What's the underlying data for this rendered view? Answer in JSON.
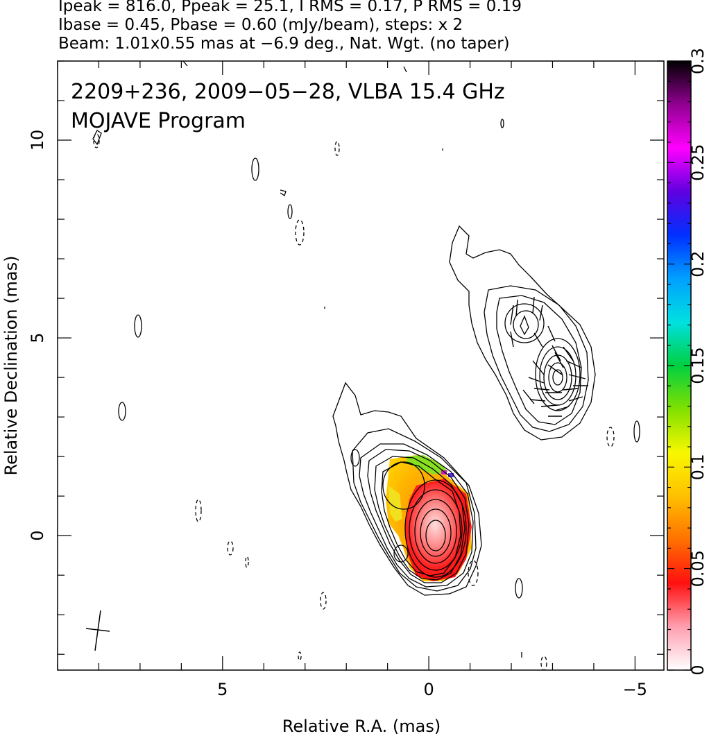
{
  "header": {
    "line1": "Ipeak = 816.0, Ppeak = 25.1, I RMS = 0.17, P RMS = 0.19",
    "line2": "Ibase = 0.45, Pbase = 0.60 (mJy/beam), steps: x 2",
    "line3": "Beam: 1.01x0.55 mas at −6.9 deg., Nat. Wgt. (no taper)"
  },
  "chart_data": {
    "type": "contour",
    "title": "2209+236, 2009−05−28, VLBA 15.4 GHz",
    "subtitle": "MOJAVE Program",
    "xlabel": "Relative R.A. (mas)",
    "ylabel": "Relative Declination (mas)",
    "xlim": [
      9.0,
      -5.7
    ],
    "ylim": [
      -3.4,
      12.0
    ],
    "x_ticks": [
      5,
      0,
      -5
    ],
    "x_tick_labels": [
      "5",
      "0",
      "−5"
    ],
    "y_ticks": [
      0,
      5,
      10
    ],
    "y_tick_labels": [
      "0",
      "5",
      "10"
    ],
    "colorbar": {
      "range": [
        0,
        0.3
      ],
      "ticks": [
        0,
        0.05,
        0.1,
        0.15,
        0.2,
        0.25,
        0.3
      ],
      "tick_labels": [
        "0",
        "0.05",
        "0.1",
        "0.15",
        "0.2",
        "0.25",
        "0.3"
      ],
      "colors": [
        "#ffffff",
        "#ff9fb0",
        "#ff1010",
        "#ff7000",
        "#ffc000",
        "#f8f800",
        "#80e000",
        "#00d040",
        "#00e0e0",
        "#00a0ff",
        "#0030ff",
        "#6000e0",
        "#ff00ff",
        "#900090",
        "#000000"
      ]
    },
    "contour_levels_mJy_per_beam": [
      0.45,
      0.9,
      1.8,
      3.6,
      7.2,
      14.4,
      28.8,
      57.6,
      115.2,
      230.4,
      460.8
    ],
    "core": {
      "x": 0.0,
      "y": 0.0,
      "peak_mJy_per_beam": 816.0
    },
    "jet_component": {
      "x": -3.0,
      "y": 4.0
    },
    "negative_contours": "dashed",
    "beam": {
      "major_mas": 1.01,
      "minor_mas": 0.55,
      "pa_deg": -6.9,
      "x": 8.6,
      "y": -2.4
    },
    "grid": false
  }
}
